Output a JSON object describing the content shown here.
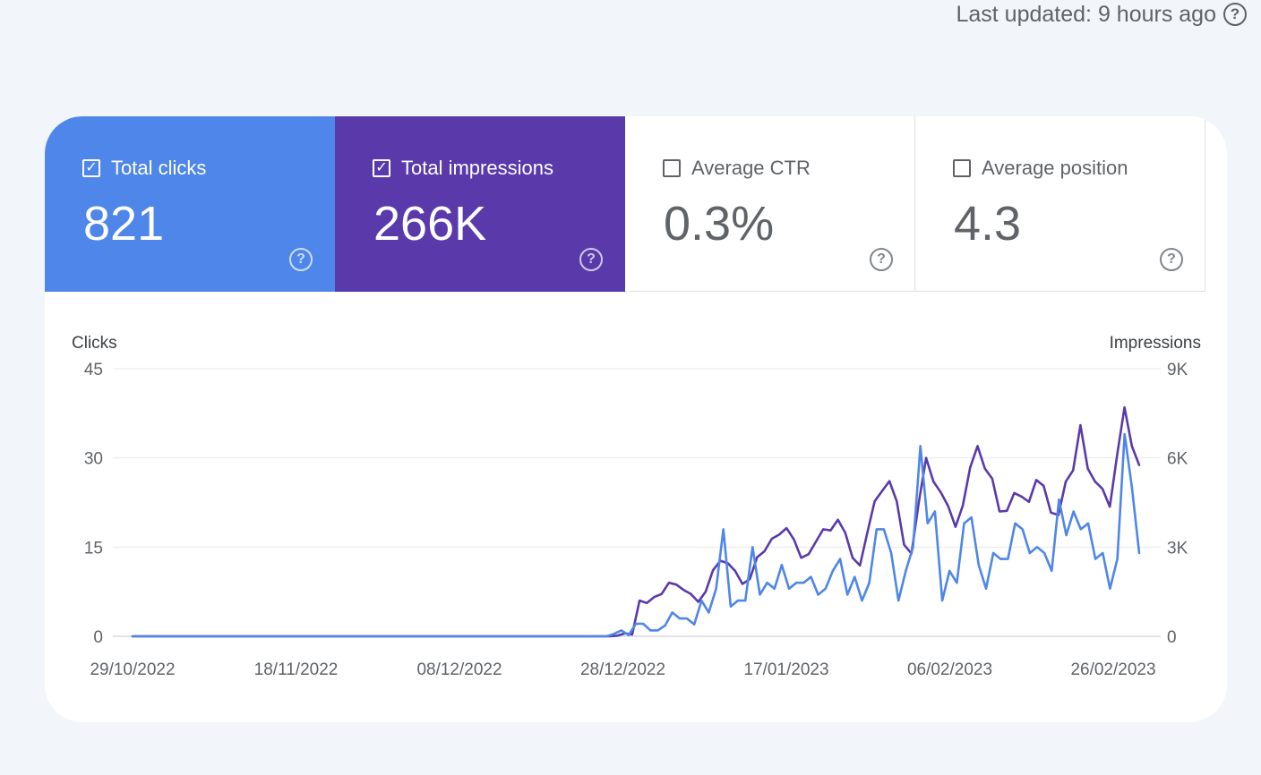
{
  "header": {
    "last_updated": "Last updated: 9 hours ago",
    "help_icon": "help-circle-icon"
  },
  "tiles": [
    {
      "label": "Total clicks",
      "value": "821",
      "checked": true,
      "color": "#4e86e9"
    },
    {
      "label": "Total impressions",
      "value": "266K",
      "checked": true,
      "color": "#5a3aab"
    },
    {
      "label": "Average CTR",
      "value": "0.3%",
      "checked": false
    },
    {
      "label": "Average position",
      "value": "4.3",
      "checked": false
    }
  ],
  "chart_data": {
    "type": "line",
    "left_axis": {
      "title": "Clicks",
      "ticks": [
        "45",
        "30",
        "15",
        "0"
      ],
      "max": 45
    },
    "right_axis": {
      "title": "Impressions",
      "ticks": [
        "9K",
        "6K",
        "3K",
        "0"
      ],
      "max": 9000
    },
    "x_tick_labels": [
      "29/10/2022",
      "18/11/2022",
      "08/12/2022",
      "28/12/2022",
      "17/01/2023",
      "06/02/2023",
      "26/02/2023"
    ],
    "x_start": "2022-10-29",
    "x_end": "2023-02-28",
    "grid": true,
    "series": [
      {
        "axis": "right",
        "color": "#5a3aab",
        "values": [
          0,
          0,
          0,
          0,
          0,
          0,
          0,
          0,
          0,
          0,
          0,
          0,
          0,
          0,
          0,
          0,
          0,
          0,
          0,
          0,
          0,
          0,
          0,
          0,
          0,
          0,
          0,
          0,
          0,
          0,
          0,
          0,
          0,
          0,
          0,
          0,
          0,
          0,
          0,
          0,
          0,
          0,
          0,
          0,
          0,
          0,
          0,
          0,
          0,
          0,
          0,
          0,
          0,
          0,
          0,
          0,
          0,
          0,
          0,
          0,
          0,
          0,
          0,
          0,
          0,
          0,
          20,
          100,
          60,
          1200,
          1120,
          1320,
          1420,
          1800,
          1740,
          1560,
          1420,
          1160,
          1500,
          2220,
          2540,
          2460,
          2200,
          1760,
          1920,
          2660,
          2860,
          3280,
          3420,
          3640,
          3260,
          2640,
          2760,
          3180,
          3600,
          3560,
          3920,
          3480,
          2640,
          2380,
          3480,
          4540,
          4880,
          5220,
          4540,
          3080,
          2780,
          4500,
          6000,
          5200,
          4840,
          4380,
          3680,
          4400,
          5680,
          6400,
          5640,
          5300,
          4200,
          4220,
          4820,
          4700,
          4520,
          5260,
          5060,
          4160,
          4080,
          5200,
          5580,
          7100,
          5640,
          5200,
          4960,
          4360,
          6100,
          7700,
          6400,
          5760
        ]
      },
      {
        "axis": "left",
        "color": "#4e86e9",
        "values": [
          0,
          0,
          0,
          0,
          0,
          0,
          0,
          0,
          0,
          0,
          0,
          0,
          0,
          0,
          0,
          0,
          0,
          0,
          0,
          0,
          0,
          0,
          0,
          0,
          0,
          0,
          0,
          0,
          0,
          0,
          0,
          0,
          0,
          0,
          0,
          0,
          0,
          0,
          0,
          0,
          0,
          0,
          0,
          0,
          0,
          0,
          0,
          0,
          0,
          0,
          0,
          0,
          0,
          0,
          0,
          0,
          0,
          0,
          0,
          0,
          0,
          0,
          0,
          0,
          0,
          0,
          0.4,
          1.0,
          0.2,
          2.1,
          2.1,
          1.0,
          1.0,
          1.8,
          4.0,
          3.0,
          3.0,
          2.0,
          6.0,
          4.0,
          8.0,
          18.0,
          5.0,
          6.0,
          6.0,
          15.0,
          7.0,
          9.0,
          8.0,
          12.0,
          8.0,
          9.0,
          9.0,
          10.0,
          7.0,
          8.0,
          11.0,
          13.0,
          7.0,
          10.0,
          6.0,
          9.0,
          18.0,
          18.0,
          14.0,
          6.0,
          11.0,
          15.0,
          32.0,
          19.0,
          21.0,
          6.0,
          11.0,
          9.0,
          19.0,
          20.0,
          12.0,
          8.0,
          14.0,
          13.0,
          13.0,
          19.0,
          18.0,
          14.0,
          15.0,
          14.0,
          11.0,
          23.0,
          17.0,
          21.0,
          18.0,
          19.0,
          13.0,
          14.0,
          8.0,
          13.0,
          34.0,
          25.0,
          14.0
        ]
      }
    ]
  }
}
